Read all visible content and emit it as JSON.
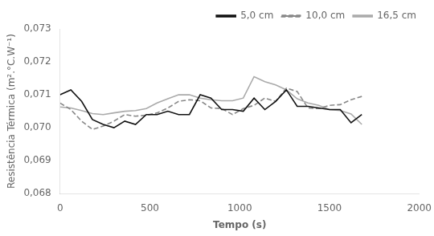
{
  "chart_data": {
    "type": "line",
    "xlabel": "Tempo (s)",
    "ylabel": "Resistência Térmica (m².°C.W⁻¹)",
    "x": [
      0,
      60,
      120,
      180,
      240,
      300,
      360,
      420,
      480,
      540,
      600,
      660,
      720,
      780,
      840,
      900,
      960,
      1020,
      1080,
      1140,
      1200,
      1260,
      1320,
      1380,
      1440,
      1500,
      1560,
      1620,
      1680
    ],
    "series": [
      {
        "name": "5,0 cm",
        "color": "#111111",
        "line_style": "solid",
        "values": [
          0.071,
          0.07115,
          0.0708,
          0.07025,
          0.0701,
          0.07,
          0.0702,
          0.0701,
          0.0704,
          0.0704,
          0.0705,
          0.0704,
          0.0704,
          0.071,
          0.0709,
          0.07055,
          0.07055,
          0.0705,
          0.0709,
          0.07055,
          0.0708,
          0.07115,
          0.07065,
          0.07065,
          0.0706,
          0.07055,
          0.07055,
          0.07015,
          0.0704
        ]
      },
      {
        "name": "10,0 cm",
        "color": "#888888",
        "line_style": "dashed",
        "values": [
          0.07075,
          0.07055,
          0.0702,
          0.06995,
          0.07005,
          0.0702,
          0.0704,
          0.07035,
          0.07038,
          0.07045,
          0.0706,
          0.0708,
          0.07085,
          0.07082,
          0.0706,
          0.07058,
          0.0704,
          0.07058,
          0.07068,
          0.0709,
          0.0708,
          0.0712,
          0.0711,
          0.0706,
          0.07058,
          0.07068,
          0.0707,
          0.07085,
          0.07095
        ]
      },
      {
        "name": "16,5 cm",
        "color": "#aaaaaa",
        "line_style": "solid",
        "values": [
          0.07063,
          0.0706,
          0.07052,
          0.07043,
          0.0704,
          0.07045,
          0.0705,
          0.07052,
          0.07058,
          0.07075,
          0.07088,
          0.071,
          0.071,
          0.0709,
          0.07085,
          0.07082,
          0.07082,
          0.0709,
          0.07155,
          0.0714,
          0.0713,
          0.07115,
          0.07088,
          0.07075,
          0.07068,
          0.07055,
          0.07052,
          0.07042,
          0.0701
        ]
      }
    ],
    "xlim": [
      0,
      2000
    ],
    "xticks": [
      0,
      500,
      1000,
      1500,
      2000
    ],
    "ylim": [
      0.068,
      0.073
    ],
    "yticks": [
      {
        "value": 0.068,
        "label": "0,068"
      },
      {
        "value": 0.069,
        "label": "0,069"
      },
      {
        "value": 0.07,
        "label": "0,070"
      },
      {
        "value": 0.071,
        "label": "0,071"
      },
      {
        "value": 0.072,
        "label": "0,072"
      },
      {
        "value": 0.073,
        "label": "0,073"
      }
    ],
    "grid": false,
    "legend": "upper right"
  }
}
